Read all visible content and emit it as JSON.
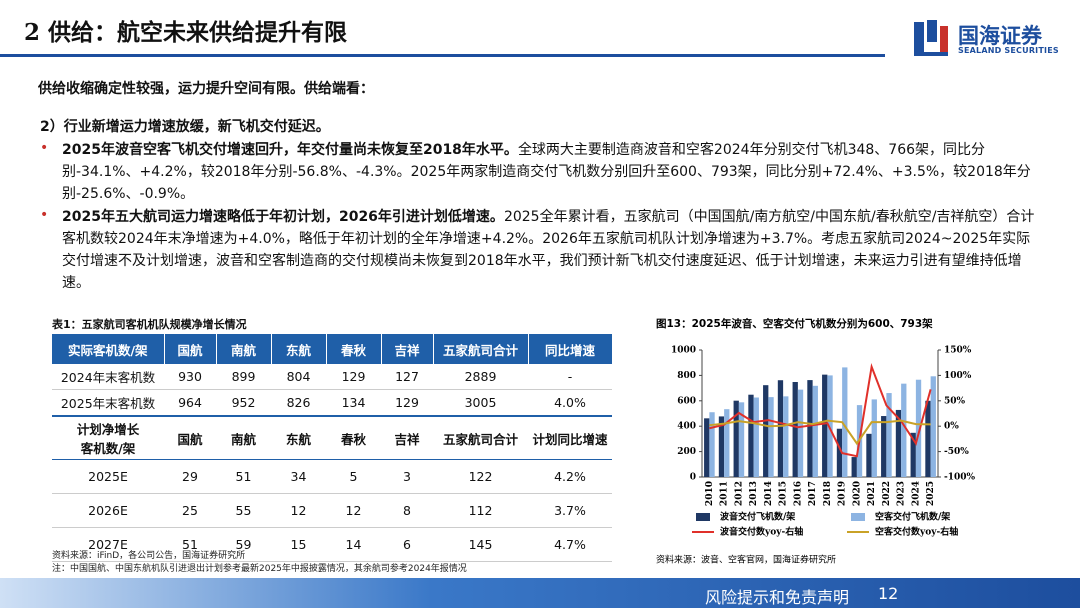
{
  "header": {
    "title": "2 供给：航空未来供给提升有限",
    "logo": {
      "name": "国海证券",
      "english": "SEALAND SECURITIES"
    }
  },
  "body": {
    "intro": "供给收缩确定性较强，运力提升空间有限。供给端看：",
    "point": "2）行业新增运力增速放缓，新飞机交付延迟。",
    "bullets": [
      {
        "bold": "2025年波音空客飞机交付增速回升，年交付量尚未恢复至2018年水平。",
        "text": "全球两大主要制造商波音和空客2024年分别交付飞机348、766架，同比分别-34.1%、+4.2%，较2018年分别-56.8%、-4.3%。2025年两家制造商交付飞机数分别回升至600、793架，同比分别+72.4%、+3.5%，较2018年分别-25.6%、-0.9%。"
      },
      {
        "bold": "2025年五大航司运力增速略低于年初计划，2026年引进计划低增速。",
        "text": "2025全年累计看，五家航司（中国国航/南方航空/中国东航/春秋航空/吉祥航空）合计客机数较2024年末净增速为+4.0%，略低于年初计划的全年净增速+4.2%。2026年五家航司机队计划净增速为+3.7%。考虑五家航司2024~2025年实际交付增速不及计划增速，波音和空客制造商的交付规模尚未恢复到2018年水平，我们预计新飞机交付速度延迟、低于计划增速，未来运力引进有望维持低增速。"
      }
    ]
  },
  "table": {
    "title": "表1：五家航司客机机队规模净增长情况",
    "header": [
      "实际客机数/架",
      "国航",
      "南航",
      "东航",
      "春秋",
      "吉祥",
      "五家航司合计",
      "同比增速"
    ],
    "rows": [
      [
        "2024年末客机数",
        930,
        899,
        804,
        129,
        127,
        2889,
        "-"
      ],
      [
        "2025年末客机数",
        964,
        952,
        826,
        134,
        129,
        3005,
        "4.0%"
      ]
    ],
    "plan_header": [
      "计划净增长\n客机数/架",
      "国航",
      "南航",
      "东航",
      "春秋",
      "吉祥",
      "五家航司合计",
      "计划同比增速"
    ],
    "plan_rows": [
      [
        "2025E",
        29,
        51,
        34,
        5,
        3,
        122,
        "4.2%"
      ],
      [
        "2026E",
        25,
        55,
        12,
        12,
        8,
        112,
        "3.7%"
      ],
      [
        "2027E",
        51,
        59,
        15,
        14,
        6,
        145,
        "4.7%"
      ]
    ],
    "source": "资料来源：iFinD，各公司公告，国海证券研究所",
    "note": "注：中国国航、中国东航机队引进退出计划参考最新2025年中报披露情况，其余航司参考2024年报情况"
  },
  "chart_data": {
    "type": "bar",
    "title": "图13：2025年波音、空客交付飞机数分别为600、793架",
    "categories": [
      "2010",
      "2011",
      "2012",
      "2013",
      "2014",
      "2015",
      "2016",
      "2017",
      "2018",
      "2019",
      "2020",
      "2021",
      "2022",
      "2023",
      "2024",
      "2025"
    ],
    "series": [
      {
        "name": "波音交付飞机数/架",
        "color": "#1f3864",
        "values": [
          462,
          477,
          601,
          648,
          723,
          762,
          748,
          763,
          806,
          380,
          157,
          340,
          480,
          528,
          348,
          600
        ]
      },
      {
        "name": "空客交付飞机数/架",
        "color": "#8db4e2",
        "values": [
          510,
          534,
          588,
          626,
          629,
          635,
          688,
          718,
          800,
          863,
          566,
          611,
          661,
          735,
          766,
          793
        ]
      },
      {
        "name": "波音交付数yoy-右轴",
        "color": "#e0302a",
        "type": "line",
        "axis": "y2",
        "values": [
          -4,
          3,
          26,
          8,
          12,
          5,
          -2,
          2,
          6,
          -53,
          -59,
          117,
          41,
          10,
          -34.1,
          72.4
        ]
      },
      {
        "name": "空客交付数yoy-右轴",
        "color": "#c9a227",
        "type": "line",
        "axis": "y2",
        "values": [
          2,
          5,
          10,
          6,
          0,
          1,
          8,
          4,
          11,
          8,
          -34,
          8,
          8,
          11,
          4.2,
          3.5
        ]
      }
    ],
    "ylim": [
      0,
      1000
    ],
    "yticks": [
      0,
      200,
      400,
      600,
      800,
      1000
    ],
    "y2lim": [
      -100,
      150
    ],
    "y2ticks": [
      {
        "value": -100,
        "label": "-100%"
      },
      {
        "value": -50,
        "label": "-50%"
      },
      {
        "value": 0,
        "label": "0%"
      },
      {
        "value": 50,
        "label": "50%"
      },
      {
        "value": 100,
        "label": "100%"
      },
      {
        "value": 150,
        "label": "150%"
      }
    ],
    "source": "资料来源：波音、空客官网，国海证券研究所"
  },
  "footer": {
    "text": "风险提示和免责声明",
    "page": 12
  }
}
